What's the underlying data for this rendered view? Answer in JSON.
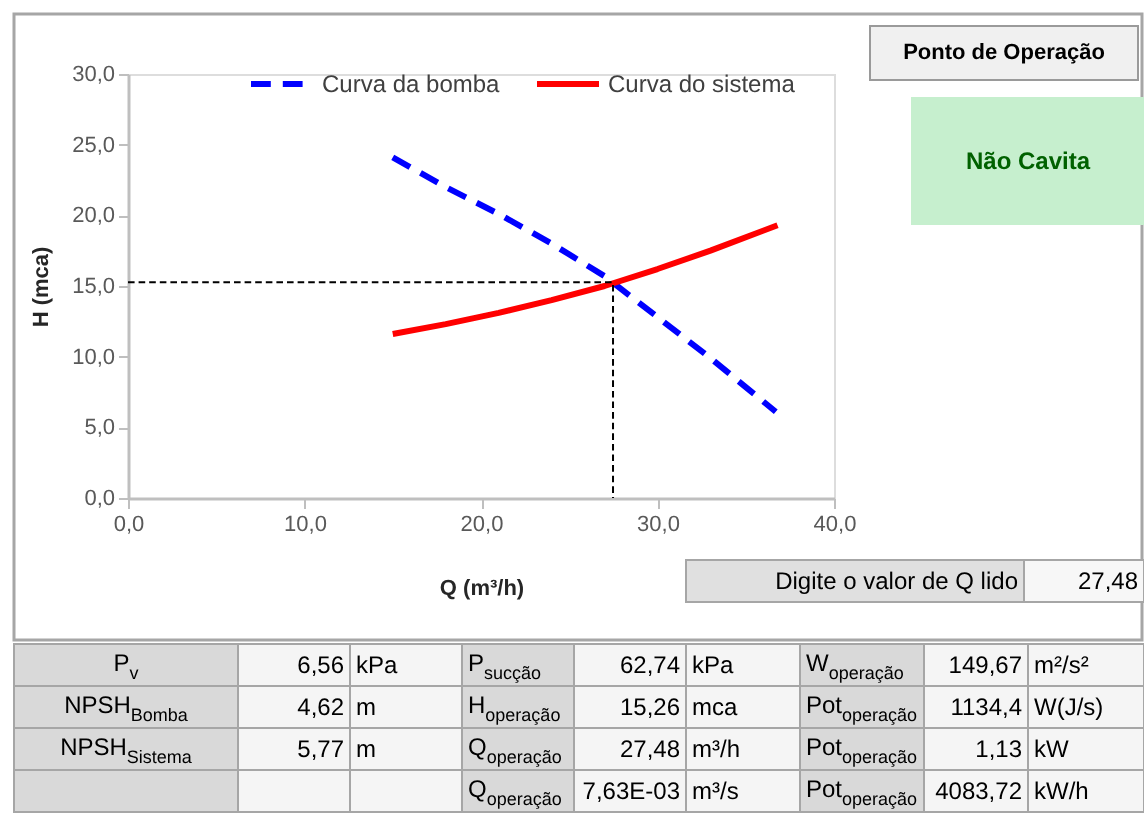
{
  "chart_data": {
    "type": "line",
    "xlabel": "Q  (m³/h)",
    "ylabel": "H (mca)",
    "legend": "top",
    "series": [
      {
        "name": "Curva da bomba",
        "color": "#0000ff",
        "line_style": "dashed",
        "x": [
          15,
          18,
          21,
          24,
          27,
          30,
          33,
          36.7
        ],
        "values": [
          24.1,
          22.0,
          20.1,
          18.0,
          15.7,
          12.8,
          9.9,
          6.1
        ]
      },
      {
        "name": "Curva do sistema",
        "color": "#ff0000",
        "line_style": "solid",
        "x": [
          15,
          18,
          21,
          24,
          27,
          30,
          33,
          36.8
        ],
        "values": [
          11.6,
          12.3,
          13.1,
          14.0,
          15.0,
          16.2,
          17.5,
          19.3
        ]
      },
      {
        "color": "#000000",
        "line_style": "dashed",
        "x": [
          0,
          27.48,
          27.48
        ],
        "values": [
          15.26,
          15.26,
          0
        ]
      }
    ],
    "xlim": [
      0,
      40
    ],
    "ylim": [
      0,
      30
    ],
    "xticks": [
      {
        "value": 0,
        "label": "0,0"
      },
      {
        "value": 10,
        "label": "10,0"
      },
      {
        "value": 20,
        "label": "20,0"
      },
      {
        "value": 30,
        "label": "30,0"
      },
      {
        "value": 40,
        "label": "40,0"
      }
    ],
    "yticks": [
      {
        "value": 0,
        "label": "0,0"
      },
      {
        "value": 5,
        "label": "5,0"
      },
      {
        "value": 10,
        "label": "10,0"
      },
      {
        "value": 15,
        "label": "15,0"
      },
      {
        "value": 20,
        "label": "20,0"
      },
      {
        "value": 25,
        "label": "25,0"
      },
      {
        "value": 30,
        "label": "30,0"
      }
    ],
    "annotations": [
      "Ponto de Operação",
      "Não Cavita",
      "Digite o valor de Q lido",
      "27,48",
      "P$_{v}$",
      "6,56",
      "kPa",
      "P$_{sucção}$",
      "62,74",
      "kPa",
      "W$_{operação}$",
      "149,67",
      "m²/s²",
      "NPSH$_{Bomba}$",
      "4,62",
      "m",
      "H$_{operação}$",
      "15,26",
      "mca",
      "Pot$_{operação}$",
      "1134,4",
      "W(J/s)",
      "NPSH$_{Sistema}$",
      "5,77",
      "m",
      "Q$_{operação}$",
      "27,48",
      "m³/h",
      "Pot$_{operação}$",
      "1,13",
      "kW",
      "Q$_{operação}$",
      "7,63E-03",
      "m³/s",
      "Pot$_{operação}$",
      "4083,72",
      "kW/h"
    ]
  }
}
